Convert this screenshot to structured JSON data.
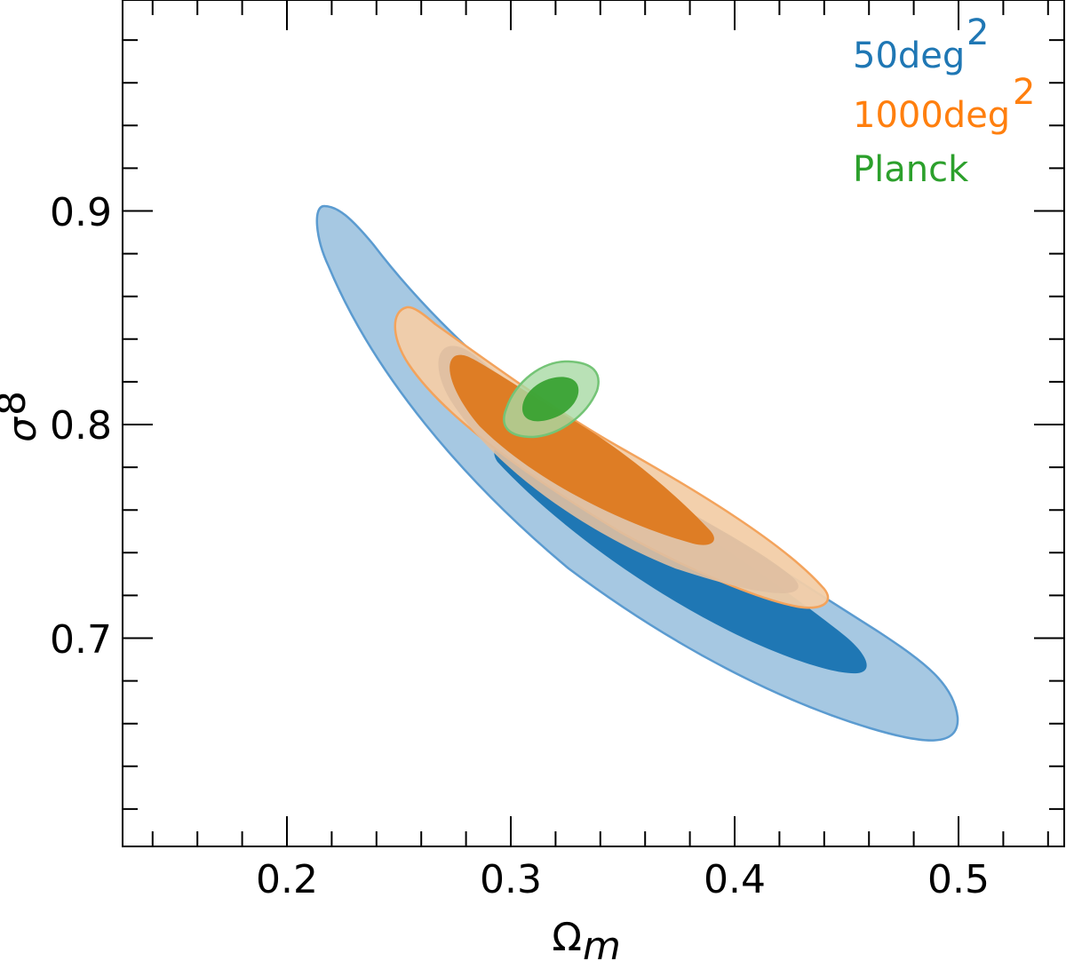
{
  "chart_data": {
    "type": "contour",
    "title": "",
    "xlabel": "Ω_m",
    "ylabel": "σ_8",
    "xlim": [
      0.126,
      0.546
    ],
    "ylim": [
      0.609,
      0.99
    ],
    "xticks": [
      0.2,
      0.3,
      0.4,
      0.5
    ],
    "xtick_labels": [
      "0.2",
      "0.3",
      "0.4",
      "0.5"
    ],
    "yticks": [
      0.7,
      0.8,
      0.9
    ],
    "ytick_labels": [
      "0.7",
      "0.8",
      "0.9"
    ],
    "grid": false,
    "legend_position": "upper right",
    "series": [
      {
        "name": "50deg²",
        "color": "#1f77b4",
        "contours": {
          "1sigma": {
            "omega_m_range": [
              0.27,
              0.455
            ],
            "sigma_8_range": [
              0.685,
              0.83
            ]
          },
          "2sigma": {
            "omega_m_range": [
              0.215,
              0.497
            ],
            "sigma_8_range": [
              0.658,
              0.902
            ]
          }
        }
      },
      {
        "name": "1000deg²",
        "color": "#ff7f0e",
        "contours": {
          "1sigma": {
            "omega_m_range": [
              0.272,
              0.39
            ],
            "sigma_8_range": [
              0.745,
              0.83
            ]
          },
          "2sigma": {
            "omega_m_range": [
              0.25,
              0.436
            ],
            "sigma_8_range": [
              0.715,
              0.853
            ]
          }
        }
      },
      {
        "name": "Planck",
        "color": "#2ca02c",
        "contours": {
          "1sigma": {
            "omega_m_range": [
              0.306,
              0.33
            ],
            "sigma_8_range": [
              0.8,
              0.822
            ]
          },
          "2sigma": {
            "omega_m_range": [
              0.296,
              0.34
            ],
            "sigma_8_range": [
              0.79,
              0.829
            ]
          }
        }
      }
    ]
  },
  "legend": {
    "items": [
      {
        "label": "50deg",
        "sup": "2",
        "color": "#1f77b4"
      },
      {
        "label": "1000deg",
        "sup": "2",
        "color": "#ff7f0e"
      },
      {
        "label": "Planck",
        "sup": "",
        "color": "#2ca02c"
      }
    ]
  },
  "axes": {
    "x_label_main": "Ω",
    "x_label_sub": "m",
    "y_label_main": "σ",
    "y_label_sub": "8",
    "x_tick_labels": [
      "0.2",
      "0.3",
      "0.4",
      "0.5"
    ],
    "y_tick_labels": [
      "0.9",
      "0.8",
      "0.7"
    ]
  }
}
